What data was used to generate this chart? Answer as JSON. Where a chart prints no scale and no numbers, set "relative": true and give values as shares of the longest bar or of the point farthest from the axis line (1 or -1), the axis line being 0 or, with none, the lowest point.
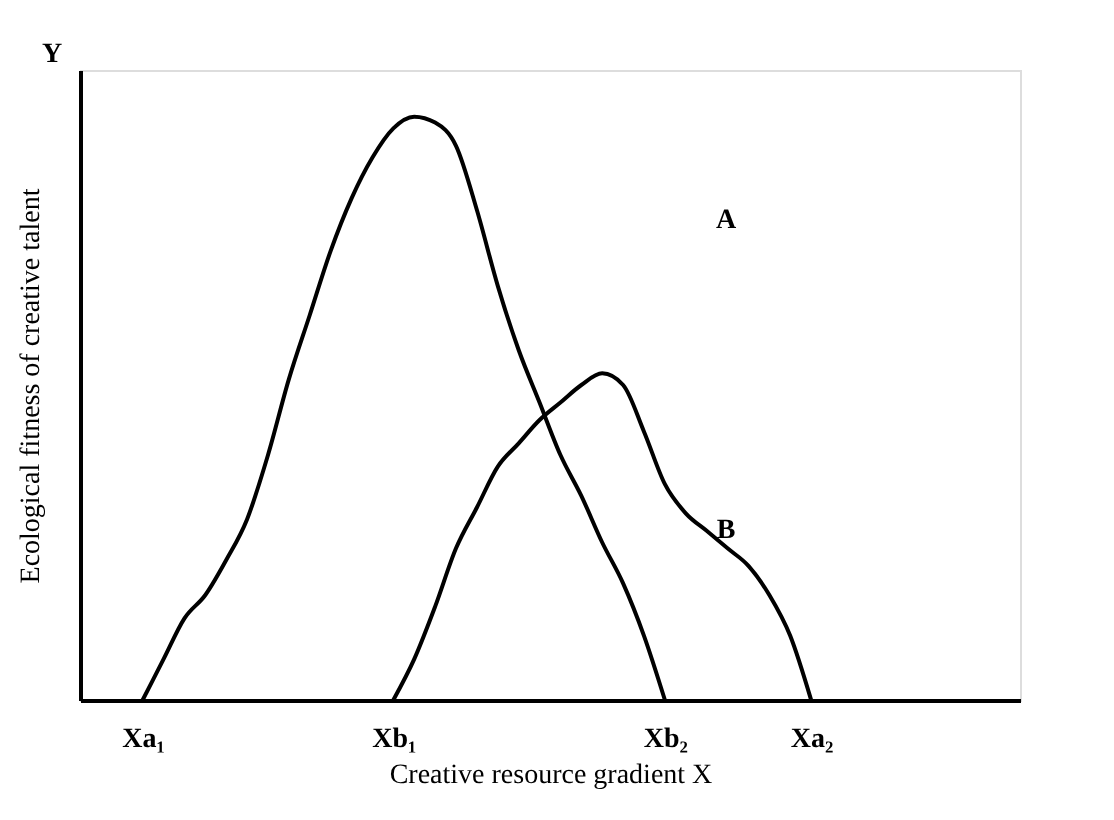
{
  "chart_data": {
    "type": "line",
    "relative": true,
    "xlabel": "Creative resource gradient  X",
    "ylabel": "Ecological fitness of creative talent",
    "categories": [
      null,
      null,
      null,
      "Xa₁",
      null,
      null,
      null,
      null,
      null,
      null,
      null,
      null,
      null,
      null,
      null,
      "Xb₁",
      null,
      null,
      null,
      null,
      null,
      null,
      null,
      null,
      null,
      null,
      null,
      null,
      "Xb₂",
      null,
      null,
      null,
      null,
      null,
      null,
      "Xa₂",
      null,
      null,
      null,
      null,
      null,
      null,
      null,
      null,
      null,
      null
    ],
    "series": [
      {
        "color": "#000000",
        "values": [
          null,
          null,
          null,
          0,
          0.07,
          0.14,
          0.18,
          0.24,
          0.31,
          0.42,
          0.55,
          0.66,
          0.77,
          0.86,
          0.93,
          0.98,
          1.0,
          0.99,
          0.95,
          0.84,
          0.71,
          0.6,
          0.51,
          0.42,
          0.35,
          0.27,
          0.2,
          0.11,
          0,
          null,
          null,
          null,
          null,
          null,
          null,
          null,
          null,
          null,
          null,
          null,
          null,
          null,
          null,
          null,
          null,
          null
        ]
      },
      {
        "color": "#000000",
        "values": [
          null,
          null,
          null,
          null,
          null,
          null,
          null,
          null,
          null,
          null,
          null,
          null,
          null,
          null,
          null,
          0,
          0.07,
          0.16,
          0.26,
          0.33,
          0.4,
          0.44,
          0.48,
          0.51,
          0.54,
          0.56,
          0.54,
          0.46,
          0.37,
          0.32,
          0.29,
          0.26,
          0.23,
          0.18,
          0.11,
          0,
          null,
          null,
          null,
          null,
          null,
          null,
          null,
          null,
          null,
          null
        ]
      }
    ],
    "annotations": [
      "A",
      "B",
      "Y"
    ],
    "grid": false,
    "legend": false
  }
}
